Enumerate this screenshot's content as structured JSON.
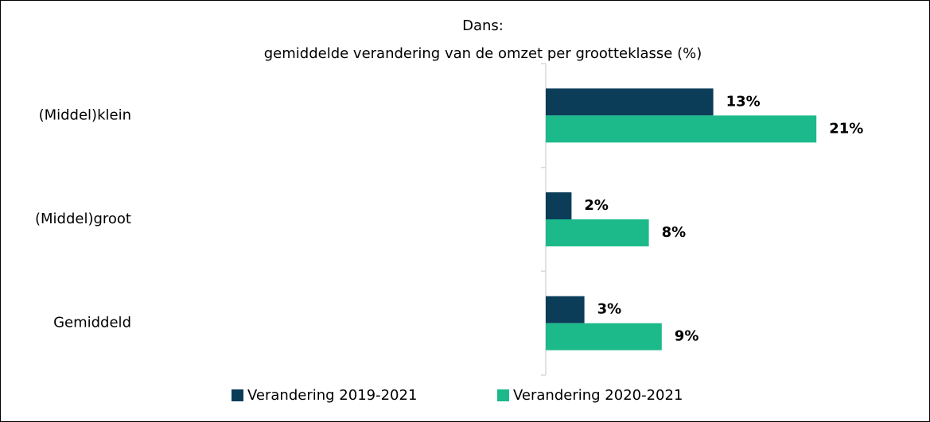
{
  "chart_data": {
    "type": "bar",
    "orientation": "horizontal",
    "title": "Dans:",
    "subtitle": "gemiddelde verandering van de omzet per grootteklasse (%)",
    "categories": [
      "(Middel)klein",
      "(Middel)groot",
      "Gemiddeld"
    ],
    "series": [
      {
        "name": "Verandering 2019-2021",
        "color": "#0b3d59",
        "values": [
          13,
          2,
          3
        ],
        "value_labels": [
          "13%",
          "2%",
          "3%"
        ]
      },
      {
        "name": "Verandering 2020-2021",
        "color": "#1cb98b",
        "values": [
          21,
          8,
          9
        ],
        "value_labels": [
          "21%",
          "8%",
          "9%"
        ]
      }
    ]
  }
}
